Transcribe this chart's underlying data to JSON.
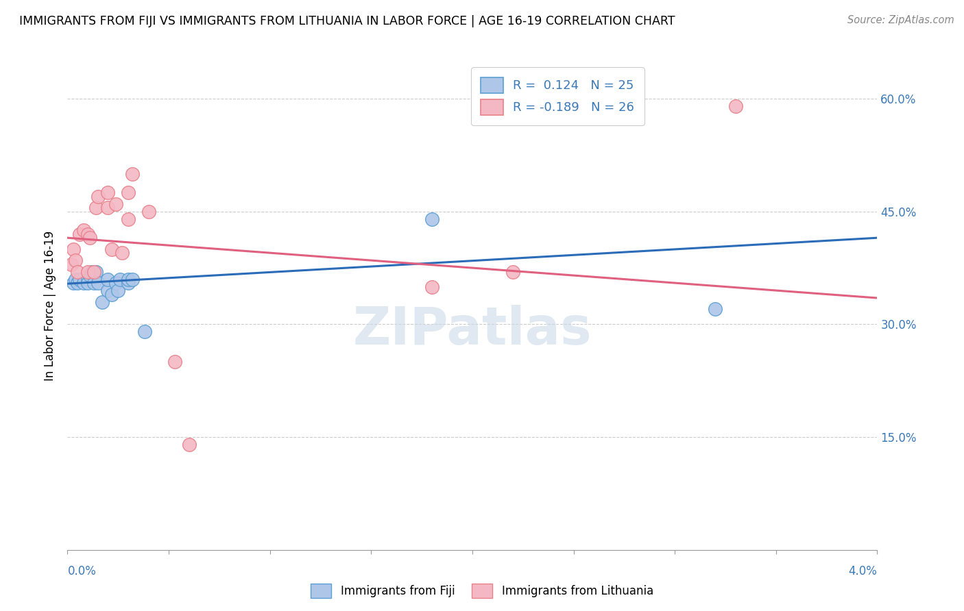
{
  "title": "IMMIGRANTS FROM FIJI VS IMMIGRANTS FROM LITHUANIA IN LABOR FORCE | AGE 16-19 CORRELATION CHART",
  "source": "Source: ZipAtlas.com",
  "ylabel": "In Labor Force | Age 16-19",
  "xlim": [
    0.0,
    0.04
  ],
  "ylim": [
    0.0,
    0.65
  ],
  "yticks": [
    0.0,
    0.15,
    0.3,
    0.45,
    0.6
  ],
  "ytick_labels": [
    "",
    "15.0%",
    "30.0%",
    "45.0%",
    "60.0%"
  ],
  "fiji_color": "#aec6e8",
  "fiji_edge_color": "#5a9fd4",
  "lithuania_color": "#f4b8c4",
  "lithuania_edge_color": "#e8808a",
  "line_fiji_color": "#2b6cb8",
  "line_lithuania_color": "#e06080",
  "fiji_R": 0.124,
  "fiji_N": 25,
  "lithuania_R": -0.189,
  "lithuania_N": 26,
  "watermark": "ZIPatlas",
  "fiji_points_x": [
    0.0003,
    0.0004,
    0.0005,
    0.0006,
    0.0008,
    0.001,
    0.001,
    0.0011,
    0.0012,
    0.0013,
    0.0014,
    0.0015,
    0.0017,
    0.002,
    0.002,
    0.0022,
    0.0024,
    0.0025,
    0.0026,
    0.003,
    0.003,
    0.0032,
    0.0038,
    0.018,
    0.032
  ],
  "fiji_points_y": [
    0.355,
    0.36,
    0.355,
    0.36,
    0.355,
    0.36,
    0.355,
    0.365,
    0.37,
    0.355,
    0.37,
    0.355,
    0.33,
    0.345,
    0.36,
    0.34,
    0.355,
    0.345,
    0.36,
    0.355,
    0.36,
    0.36,
    0.29,
    0.44,
    0.32
  ],
  "lithuania_points_x": [
    0.0002,
    0.0003,
    0.0004,
    0.0005,
    0.0006,
    0.0008,
    0.001,
    0.001,
    0.0011,
    0.0013,
    0.0014,
    0.0015,
    0.002,
    0.002,
    0.0022,
    0.0024,
    0.0027,
    0.003,
    0.003,
    0.0032,
    0.004,
    0.0053,
    0.006,
    0.018,
    0.022,
    0.033
  ],
  "lithuania_points_y": [
    0.38,
    0.4,
    0.385,
    0.37,
    0.42,
    0.425,
    0.42,
    0.37,
    0.415,
    0.37,
    0.455,
    0.47,
    0.475,
    0.455,
    0.4,
    0.46,
    0.395,
    0.44,
    0.475,
    0.5,
    0.45,
    0.25,
    0.14,
    0.35,
    0.37,
    0.59
  ],
  "line_fiji_x0": 0.0,
  "line_fiji_y0": 0.354,
  "line_fiji_x1": 0.04,
  "line_fiji_y1": 0.415,
  "line_lith_x0": 0.0,
  "line_lith_y0": 0.415,
  "line_lith_x1": 0.04,
  "line_lith_y1": 0.335
}
